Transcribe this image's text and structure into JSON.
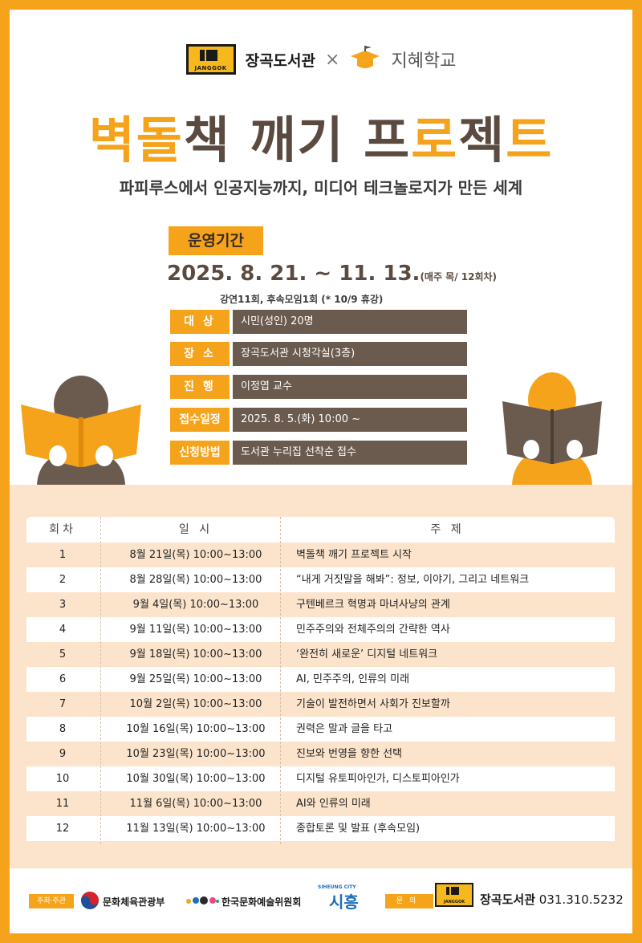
{
  "header": {
    "logo_text": "JANGGOK",
    "library_name": "장곡도서관",
    "cross": "×",
    "school_name": "지혜학교"
  },
  "title": {
    "part1": "벽돌",
    "part2": "책",
    "part3": " 깨기 ",
    "part4": "프",
    "part5": "로",
    "part6": "젝",
    "part7": "트"
  },
  "subtitle": "파피루스에서 인공지능까지, 미디어 테크놀로지가 만든 세계",
  "period": {
    "label": "운영기간",
    "dates": "2025. 8. 21. ~ 11. 13.",
    "dates_suffix": "(매주 목/ 12회차)",
    "note": "강연11회, 후속모임1회  (* 10/9 휴강)"
  },
  "info": [
    {
      "label": "대  상",
      "value": "시민(성인) 20명"
    },
    {
      "label": "장  소",
      "value": "장곡도서관 시청각실(3층)"
    },
    {
      "label": "진  행",
      "value": "이정엽 교수"
    },
    {
      "label": "접수일정",
      "value": "2025. 8. 5.(화) 10:00 ~"
    },
    {
      "label": "신청방법",
      "value": "도서관 누리집 선착순 접수"
    }
  ],
  "schedule": {
    "headers": {
      "no": "회차",
      "date": "일 시",
      "topic": "주 제"
    },
    "rows": [
      {
        "no": "1",
        "date": "8월 21일(목) 10:00~13:00",
        "topic": "벽돌책 깨기 프로젝트 시작"
      },
      {
        "no": "2",
        "date": "8월 28일(목) 10:00~13:00",
        "topic": "“내게 거짓말을 해봐”: 정보, 이야기, 그리고 네트워크"
      },
      {
        "no": "3",
        "date": "9월  4일(목) 10:00~13:00",
        "topic": "구텐베르크 혁명과 마녀사냥의 관계"
      },
      {
        "no": "4",
        "date": "9월 11일(목) 10:00~13:00",
        "topic": "민주주의와 전체주의의 간략한 역사"
      },
      {
        "no": "5",
        "date": "9월 18일(목) 10:00~13:00",
        "topic": "‘완전히 새로운’ 디지털 네트워크"
      },
      {
        "no": "6",
        "date": "9월 25일(목) 10:00~13:00",
        "topic": " AI, 민주주의, 인류의 미래"
      },
      {
        "no": "7",
        "date": "10월  2일(목) 10:00~13:00",
        "topic": "기술이 발전하면서 사회가 진보할까"
      },
      {
        "no": "8",
        "date": "10월 16일(목) 10:00~13:00",
        "topic": "권력은 말과 글을 타고"
      },
      {
        "no": "9",
        "date": "10월 23일(목) 10:00~13:00",
        "topic": "진보와 번영을 향한 선택"
      },
      {
        "no": "10",
        "date": "10월 30일(목) 10:00~13:00",
        "topic": "디지털 유토피아인가, 디스토피아인가"
      },
      {
        "no": "11",
        "date": "11월  6일(목) 10:00~13:00",
        "topic": "AI와 인류의 미래"
      },
      {
        "no": "12",
        "date": "11월 13일(목) 10:00~13:00",
        "topic": "종합토론 및 발표 (후속모임)"
      }
    ]
  },
  "footer": {
    "host_label": "주최·주관",
    "org1": "문화체육관광부",
    "org2": "한국문화예술위원회",
    "city_small": "SIHEUNG CITY",
    "city": "시흥",
    "contact_label": "문의",
    "logo_text": "JANGGOK",
    "library_name": "장곡도서관",
    "phone": "031.310.5232"
  },
  "colors": {
    "accent": "#f6a31c",
    "brown": "#6b5b4f",
    "peach": "#fce4cc"
  }
}
